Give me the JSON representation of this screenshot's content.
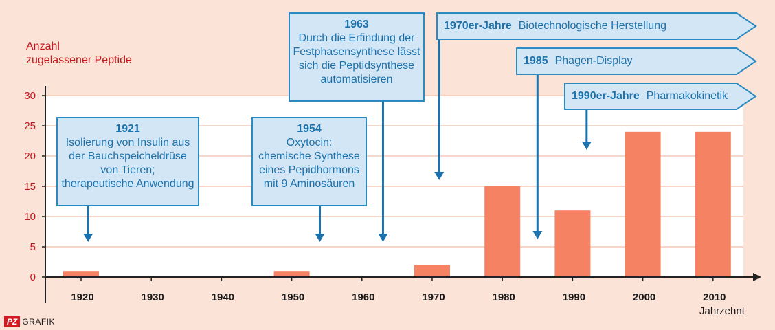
{
  "chart_data": {
    "type": "bar",
    "ylabel": "Anzahl\nzugelassener Peptide",
    "xlabel": "Jahrzehnt",
    "categories": [
      "1920",
      "1930",
      "1940",
      "1950",
      "1960",
      "1970",
      "1980",
      "1990",
      "2000",
      "2010"
    ],
    "values": [
      1,
      0,
      0,
      1,
      0,
      2,
      15,
      11,
      24,
      24
    ],
    "yticks": [
      0,
      5,
      10,
      15,
      20,
      25,
      30
    ],
    "ylim": [
      0,
      33
    ],
    "grid": "horizontal",
    "bar_color": "#f58363",
    "annotations": [
      {
        "year": "1921",
        "text": "Isolierung von Insulin aus\nder Bauchspeicheldrüse\nvon Tieren;\ntherapeutische Anwendung",
        "x": 1921
      },
      {
        "year": "1954",
        "text": "Oxytocin:\nchemische Synthese\neines Pepidhormons\nmit 9 Aminosäuren",
        "x": 1954
      },
      {
        "year": "1963",
        "text": "Durch die Erfindung der\nFestphasensynthese lässt\nsich die Peptidsynthese\nautomatisieren",
        "x": 1963
      }
    ],
    "banners": [
      {
        "year": "1970er-Jahre",
        "text": "Biotechnologische Herstellung",
        "x": 1971
      },
      {
        "year": "1985",
        "text": "Phagen-Display",
        "x": 1985
      },
      {
        "year": "1990er-Jahre",
        "text": "Pharmakokinetik",
        "x": 1992
      }
    ]
  },
  "logo": {
    "mark": "PZ",
    "text": "GRAFIK"
  },
  "colors": {
    "accent_red": "#c8161d",
    "box_fill": "#d3e6f5",
    "box_border": "#2b8ac0",
    "text_blue": "#1b72ad"
  }
}
